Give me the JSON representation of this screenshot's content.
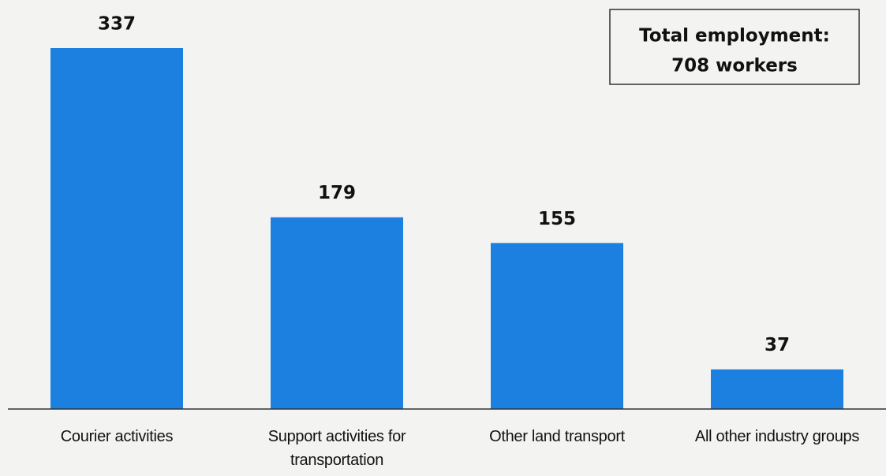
{
  "chart_data": {
    "type": "bar",
    "categories": [
      "Courier activities",
      "Support activities for transportation",
      "Other land transport",
      "All other industry groups"
    ],
    "values": [
      337,
      179,
      155,
      37
    ],
    "color": "#1b80e0",
    "annotation": [
      "Total employment:",
      "708 workers"
    ]
  }
}
